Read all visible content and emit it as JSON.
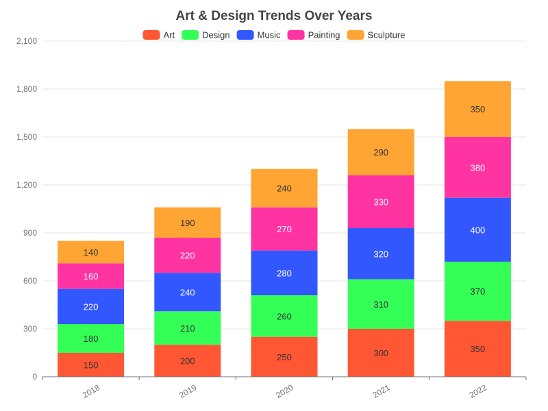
{
  "chart_data": {
    "type": "bar",
    "stacked": true,
    "title": "Art & Design Trends Over Years",
    "xlabel": "",
    "ylabel": "",
    "categories": [
      "2018",
      "2019",
      "2020",
      "2021",
      "2022"
    ],
    "ylim": [
      0,
      2100
    ],
    "yticks": [
      0,
      300,
      600,
      900,
      1200,
      1500,
      1800,
      2100
    ],
    "ytick_labels": [
      "0",
      "300",
      "600",
      "900",
      "1,200",
      "1,500",
      "1,800",
      "2,100"
    ],
    "grid": true,
    "legend_position": "top-center",
    "series": [
      {
        "name": "Art",
        "color": "#ff5733",
        "label_color": "#333333",
        "values": [
          150,
          200,
          250,
          300,
          350
        ]
      },
      {
        "name": "Design",
        "color": "#33ff57",
        "label_color": "#333333",
        "values": [
          180,
          210,
          260,
          310,
          370
        ]
      },
      {
        "name": "Music",
        "color": "#3357ff",
        "label_color": "#ffffff",
        "values": [
          220,
          240,
          280,
          320,
          400
        ]
      },
      {
        "name": "Painting",
        "color": "#ff33a1",
        "label_color": "#ffffff",
        "values": [
          160,
          220,
          270,
          330,
          380
        ]
      },
      {
        "name": "Sculpture",
        "color": "#ffa533",
        "label_color": "#333333",
        "values": [
          140,
          190,
          240,
          290,
          350
        ]
      }
    ]
  }
}
